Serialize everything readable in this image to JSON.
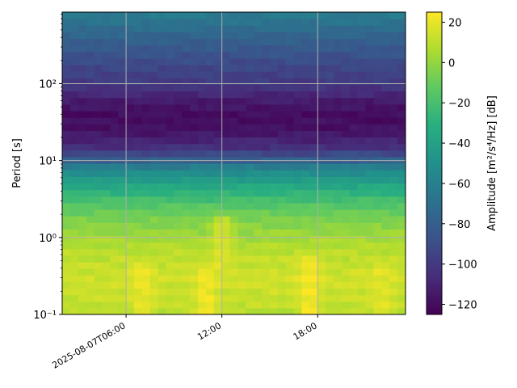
{
  "chart_data": {
    "type": "heatmap",
    "title": "",
    "xlabel": "",
    "ylabel": "Period [s]",
    "yscale": "log",
    "xlim": [
      "2025-08-07T02:00",
      "2025-08-07T23:30"
    ],
    "ylim": [
      0.1,
      850
    ],
    "x_ticks": [
      "2025-08-07T06:00",
      "12:00",
      "18:00"
    ],
    "x_tick_values": [
      "2025-08-07T06:00",
      "2025-08-07T12:00",
      "2025-08-07T18:00"
    ],
    "y_ticks": [
      "10⁻¹",
      "10⁰",
      "10¹",
      "10²"
    ],
    "y_tick_values": [
      0.1,
      1,
      10,
      100
    ],
    "grid": true,
    "colorbar": {
      "label": "Amplitude [m²/s⁴/Hz] [dB]",
      "colormap": "viridis",
      "range": [
        -125,
        25
      ],
      "ticks": [
        20,
        0,
        -20,
        -40,
        -60,
        -80,
        -100,
        -120
      ]
    },
    "period_profile_db": [
      {
        "period": 0.1,
        "db": 8
      },
      {
        "period": 0.15,
        "db": 12
      },
      {
        "period": 0.3,
        "db": 14
      },
      {
        "period": 0.6,
        "db": 10
      },
      {
        "period": 1,
        "db": 4
      },
      {
        "period": 2,
        "db": -8
      },
      {
        "period": 3,
        "db": -20
      },
      {
        "period": 5,
        "db": -38
      },
      {
        "period": 8,
        "db": -58
      },
      {
        "period": 10,
        "db": -78
      },
      {
        "period": 15,
        "db": -105
      },
      {
        "period": 25,
        "db": -118
      },
      {
        "period": 40,
        "db": -120
      },
      {
        "period": 60,
        "db": -114
      },
      {
        "period": 100,
        "db": -100
      },
      {
        "period": 200,
        "db": -90
      },
      {
        "period": 400,
        "db": -78
      },
      {
        "period": 850,
        "db": -62
      }
    ],
    "high_energy_bursts": [
      {
        "time": "2025-08-07T07:00",
        "period_min": 0.1,
        "period_max": 0.5,
        "peak_db": 22
      },
      {
        "time": "2025-08-07T11:00",
        "period_min": 0.1,
        "period_max": 0.4,
        "peak_db": 24
      },
      {
        "time": "2025-08-07T12:00",
        "period_min": 0.4,
        "period_max": 2,
        "peak_db": 18
      },
      {
        "time": "2025-08-07T17:30",
        "period_min": 0.1,
        "period_max": 0.6,
        "peak_db": 25
      },
      {
        "time": "2025-08-07T22:00",
        "period_min": 0.1,
        "period_max": 0.5,
        "peak_db": 20
      }
    ]
  }
}
